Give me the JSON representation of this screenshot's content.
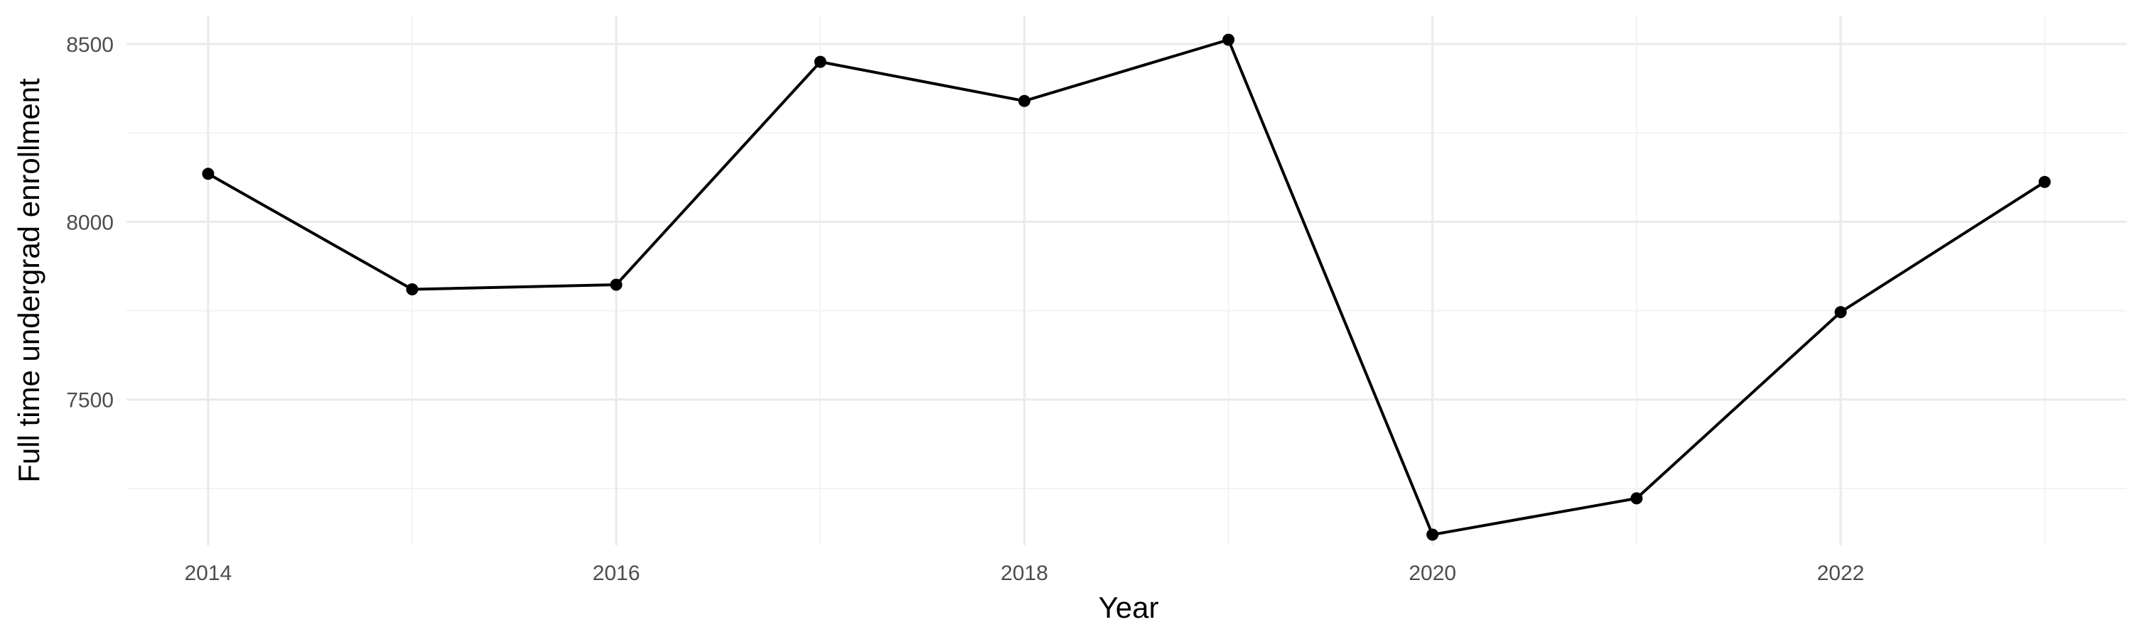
{
  "chart_data": {
    "type": "line",
    "title": "",
    "xlabel": "Year",
    "ylabel": "Full time undergrad enrollment",
    "x": [
      2014,
      2015,
      2016,
      2017,
      2018,
      2019,
      2020,
      2021,
      2022,
      2023
    ],
    "series": [
      {
        "values": [
          8135,
          7810,
          7823,
          8450,
          8340,
          8512,
          7120,
          7222,
          7746,
          8112
        ],
        "color": "#000000"
      }
    ],
    "xlim": [
      2013.6,
      2023.4
    ],
    "ylim": [
      7090,
      8580
    ],
    "x_ticks": [
      2014,
      2016,
      2018,
      2020,
      2022
    ],
    "x_tick_labels": [
      "2014",
      "2016",
      "2018",
      "2020",
      "2022"
    ],
    "x_minor_ticks": [
      2015,
      2017,
      2019,
      2021,
      2023
    ],
    "y_ticks": [
      7500,
      8000,
      8500
    ],
    "y_tick_labels": [
      "7500",
      "8000",
      "8500"
    ],
    "y_minor_ticks": [
      7250,
      7750,
      8250
    ],
    "grid": true,
    "legend": "none"
  }
}
